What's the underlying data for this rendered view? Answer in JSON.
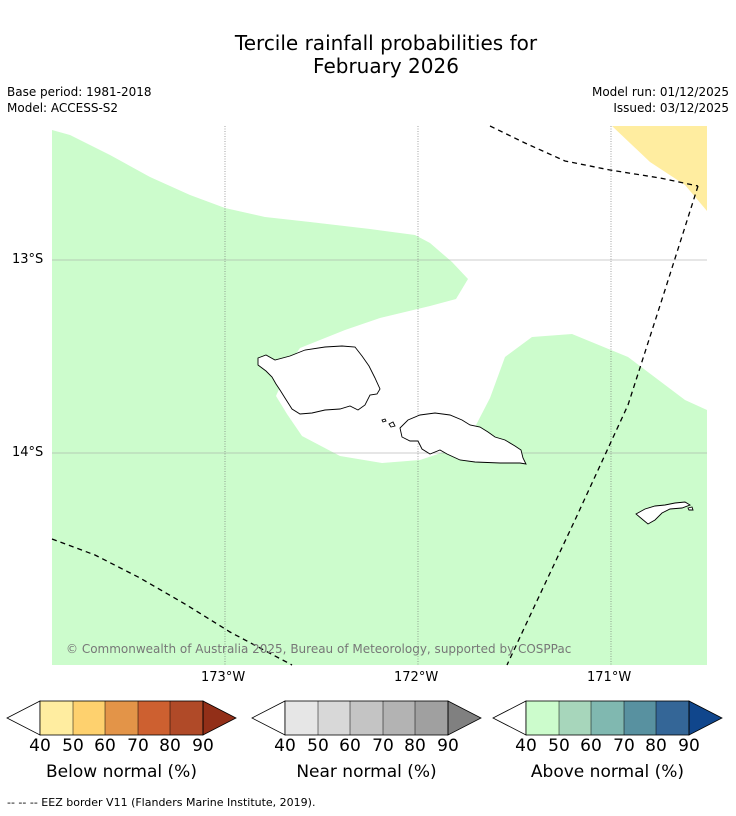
{
  "title_line1": "Tercile rainfall probabilities for",
  "title_line2": "February 2026",
  "meta": {
    "base_period": "Base period: 1981-2018",
    "model": "Model: ACCESS-S2",
    "model_run": "Model run: 01/12/2025",
    "issued": "Issued: 03/12/2025"
  },
  "map": {
    "lat_labels": [
      "13°S",
      "14°S"
    ],
    "lon_labels": [
      "173°W",
      "172°W",
      "171°W"
    ],
    "copyright": "© Commonwealth of Australia 2025, Bureau of Meteorology, supported by COSPPac",
    "colors": {
      "above_40_50": "#ccfccc",
      "below_40_50": "#ffeda0",
      "land_outline": "#000000",
      "eez_line": "#000000"
    }
  },
  "colorbars": [
    {
      "label": "Below normal (%)",
      "ticks": [
        "40",
        "50",
        "60",
        "70",
        "80",
        "90"
      ],
      "colors": [
        "#ffeda0",
        "#fed16e",
        "#e39448",
        "#cd6030",
        "#b04a28",
        "#922f18"
      ]
    },
    {
      "label": "Near normal (%)",
      "ticks": [
        "40",
        "50",
        "60",
        "70",
        "80",
        "90"
      ],
      "colors": [
        "#e6e6e6",
        "#d8d8d8",
        "#c4c4c4",
        "#b3b3b3",
        "#a0a0a0",
        "#808080"
      ]
    },
    {
      "label": "Above normal (%)",
      "ticks": [
        "40",
        "50",
        "60",
        "70",
        "80",
        "90"
      ],
      "colors": [
        "#ccfccc",
        "#a7d6bb",
        "#80b8b0",
        "#5891a0",
        "#346697",
        "#10468c"
      ]
    }
  ],
  "footer": "-- -- -- EEZ border V11 (Flanders Marine Institute, 2019)."
}
